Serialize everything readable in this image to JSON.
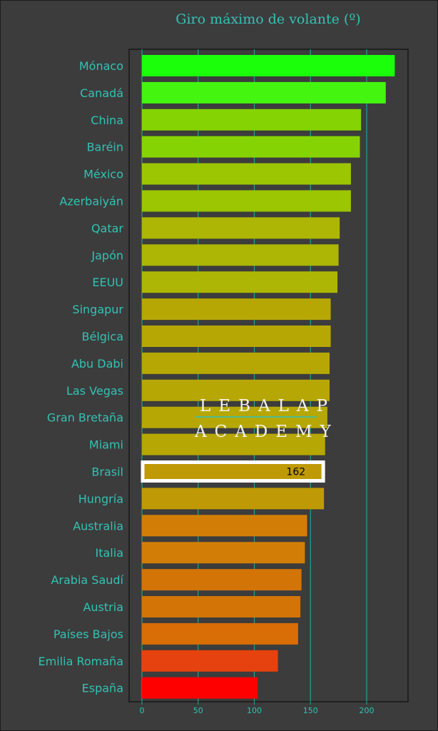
{
  "colors": {
    "background": "#3c3c3c",
    "plot_border": "#161616",
    "grid": "#1fa396",
    "text": "#33c2b4",
    "highlight_border": "#ffffff",
    "watermark": "#ffffff"
  },
  "watermark": {
    "line1": "LEBALAP",
    "line2": "ACADEMY"
  },
  "chart_data": {
    "type": "bar",
    "orientation": "horizontal",
    "title": "Giro máximo de volante (º)",
    "xlabel": "",
    "ylabel": "",
    "xlim": [
      -7,
      237
    ],
    "xticks": [
      0,
      50,
      100,
      150,
      200
    ],
    "grid": "vertical",
    "categories": [
      "Mónaco",
      "Canadá",
      "China",
      "Baréin",
      "México",
      "Azerbaiyán",
      "Qatar",
      "Japón",
      "EEUU",
      "Singapur",
      "Bélgica",
      "Abu Dabi",
      "Las Vegas",
      "Gran Bretaña",
      "Miami",
      "Brasil",
      "Hungría",
      "Australia",
      "Italia",
      "Arabia Saudí",
      "Austria",
      "Países Bajos",
      "Emilia Romaña",
      "España"
    ],
    "values": [
      225,
      217,
      195,
      194,
      186,
      186,
      176,
      175,
      174,
      168,
      168,
      167,
      167,
      165,
      163,
      162,
      162,
      147,
      145,
      142,
      141,
      139,
      121,
      103
    ],
    "colors": [
      "#1bff0b",
      "#44f50f",
      "#86d304",
      "#86d304",
      "#9cc502",
      "#9cc502",
      "#adb604",
      "#adb604",
      "#adb604",
      "#b7a704",
      "#b7a704",
      "#b7a704",
      "#b7a704",
      "#b7a704",
      "#b7a704",
      "#bf9a06",
      "#bf9a06",
      "#d27e06",
      "#d27e06",
      "#d27406",
      "#d27406",
      "#d96d06",
      "#e6420f",
      "#ff0000"
    ],
    "highlight": {
      "category": "Brasil",
      "label": "162"
    }
  }
}
